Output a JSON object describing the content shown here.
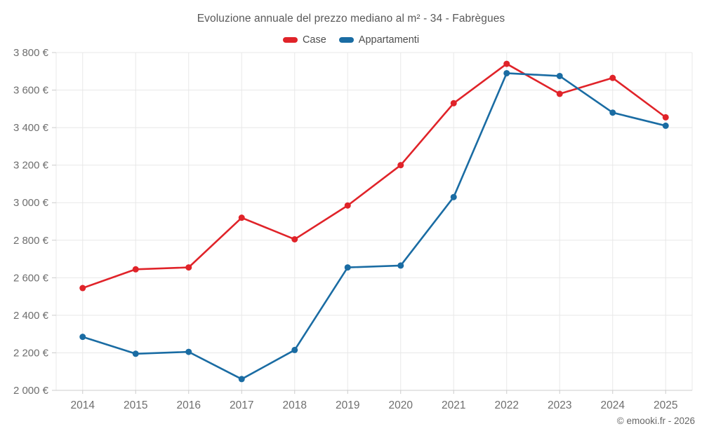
{
  "title": "Evoluzione annuale del prezzo mediano al m² - 34 - Fabrègues",
  "footer_credit": "© emooki.fr - 2026",
  "colors": {
    "case_red": "#e02329",
    "appartamenti_blue": "#1a6ca3",
    "grid": "#e8e8e8",
    "axis_line": "#cccccc",
    "tick_label": "#6e6e6e",
    "title_text": "#595959",
    "legend_text": "#4d4d4d",
    "footer_text": "#666666"
  },
  "legend": [
    {
      "label": "Case",
      "color": "#e02329"
    },
    {
      "label": "Appartamenti",
      "color": "#1a6ca3"
    }
  ],
  "chart_data": {
    "type": "line",
    "title": "Evoluzione annuale del prezzo mediano al m² - 34 - Fabrègues",
    "categories": [
      "2014",
      "2015",
      "2016",
      "2017",
      "2018",
      "2019",
      "2020",
      "2021",
      "2022",
      "2023",
      "2024",
      "2025"
    ],
    "series": [
      {
        "name": "Case",
        "color": "#e02329",
        "values": [
          2545,
          2645,
          2655,
          2920,
          2805,
          2985,
          3200,
          3530,
          3740,
          3580,
          3665,
          3455
        ]
      },
      {
        "name": "Appartamenti",
        "color": "#1a6ca3",
        "values": [
          2285,
          2195,
          2205,
          2060,
          2215,
          2655,
          2665,
          3030,
          3690,
          3675,
          3480,
          3410
        ]
      }
    ],
    "xlabel": "",
    "ylabel": "",
    "ylim": [
      2000,
      3800
    ],
    "ytick_values": [
      2000,
      2200,
      2400,
      2600,
      2800,
      3000,
      3200,
      3400,
      3600,
      3800
    ],
    "ytick_labels": [
      "2 000 €",
      "2 200 €",
      "2 400 €",
      "2 600 €",
      "2 800 €",
      "3 000 €",
      "3 200 €",
      "3 400 €",
      "3 600 €",
      "3 800 €"
    ],
    "grid": true,
    "legend_position": "top"
  }
}
